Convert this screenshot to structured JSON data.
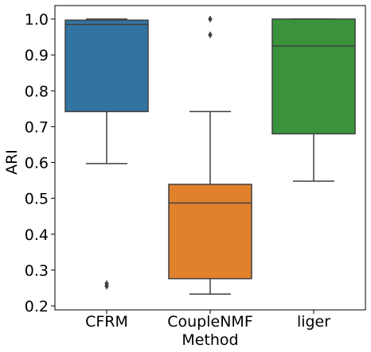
{
  "chart_data": {
    "type": "box",
    "title": "",
    "xlabel": "Method",
    "ylabel": "ARI",
    "ylim": [
      0.2,
      1.0
    ],
    "yticks": [
      "0.2",
      "0.3",
      "0.4",
      "0.5",
      "0.6",
      "0.7",
      "0.8",
      "0.9",
      "1.0"
    ],
    "categories": [
      "CFRM",
      "CoupleNMF",
      "liger"
    ],
    "series": [
      {
        "category": "CFRM",
        "color": "#3274a1",
        "whisker_low": 0.597,
        "q1": 0.742,
        "median": 0.985,
        "q3": 0.997,
        "whisker_high": 1.0,
        "outliers": [
          0.255,
          0.262
        ]
      },
      {
        "category": "CoupleNMF",
        "color": "#e1812c",
        "whisker_low": 0.233,
        "q1": 0.276,
        "median": 0.487,
        "q3": 0.539,
        "whisker_high": 0.742,
        "outliers": [
          0.956,
          1.0
        ]
      },
      {
        "category": "liger",
        "color": "#3a923a",
        "whisker_low": 0.548,
        "q1": 0.68,
        "median": 0.925,
        "q3": 1.0,
        "whisker_high": 1.0,
        "outliers": []
      }
    ]
  }
}
